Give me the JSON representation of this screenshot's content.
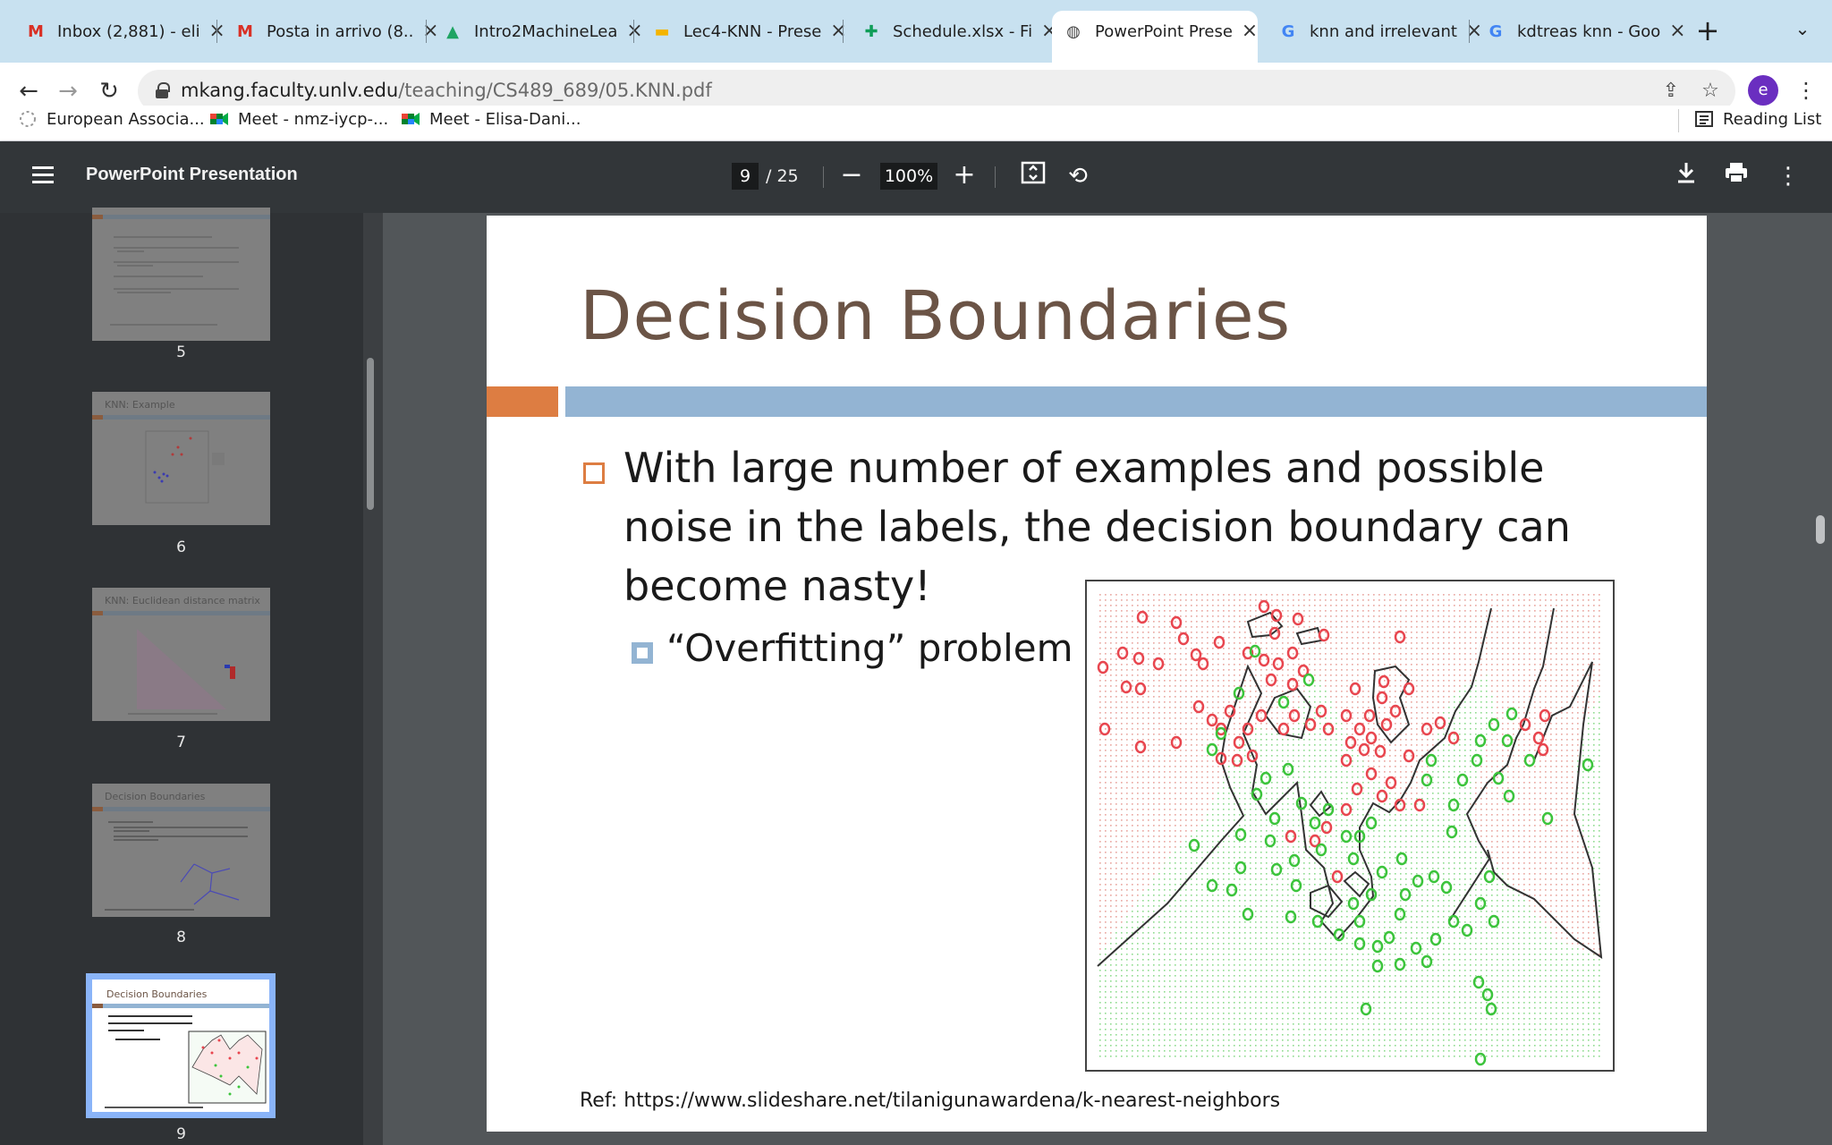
{
  "tabs": [
    {
      "label": "Inbox (2,881) - eli",
      "icon": "gmail-icon",
      "glyph": "M",
      "color": "#d93025"
    },
    {
      "label": "Posta in arrivo (8..",
      "icon": "gmail-icon",
      "glyph": "M",
      "color": "#d93025"
    },
    {
      "label": "Intro2MachineLea",
      "icon": "google-drive-icon",
      "glyph": "▲",
      "color": "#1fa463"
    },
    {
      "label": "Lec4-KNN - Prese",
      "icon": "google-slides-icon",
      "glyph": "▬",
      "color": "#f4b400"
    },
    {
      "label": "Schedule.xlsx - Fi",
      "icon": "google-sheets-icon",
      "glyph": "✚",
      "color": "#0f9d58"
    },
    {
      "label": "PowerPoint Prese",
      "icon": "globe-icon",
      "glyph": "◍",
      "color": "#444444",
      "active": true
    },
    {
      "label": "knn and irrelevant",
      "icon": "google-icon",
      "glyph": "G",
      "color": "#4285f4"
    },
    {
      "label": "kdtreas knn - Goo",
      "icon": "google-icon",
      "glyph": "G",
      "color": "#4285f4"
    }
  ],
  "toolbar": {
    "url_host": "mkang.faculty.unlv.edu",
    "url_path": "/teaching/CS489_689/05.KNN.pdf",
    "avatar_letter": "e"
  },
  "bookmarks": [
    {
      "label": "European Associa...",
      "icon": "loading-icon"
    },
    {
      "label": "Meet - nmz-iycp-...",
      "icon": "google-meet-icon"
    },
    {
      "label": "Meet - Elisa-Dani...",
      "icon": "google-meet-icon"
    }
  ],
  "reading_list": "Reading List",
  "pdf": {
    "title": "PowerPoint Presentation",
    "page_current": "9",
    "page_total": "/ 25",
    "zoom": "100%"
  },
  "thumbnails": [
    {
      "num": "5",
      "title": ""
    },
    {
      "num": "6",
      "title": "KNN: Example"
    },
    {
      "num": "7",
      "title": "KNN: Euclidean distance matrix"
    },
    {
      "num": "8",
      "title": "Decision Boundaries"
    },
    {
      "num": "9",
      "title": "Decision Boundaries",
      "selected": true
    }
  ],
  "slide": {
    "title": "Decision Boundaries",
    "bullet1": "With large number of examples and possible noise in the labels, the decision boundary can become nasty!",
    "bullet2": "“Overfitting” problem",
    "ref": "Ref: https://www.slideshare.net/tilanigunawardena/k-nearest-neighbors",
    "colors": {
      "title": "#6b5446",
      "accent_orange": "#dd7d42",
      "accent_blue": "#93b4d3",
      "class_red": "#e8464f",
      "class_green": "#3cc43c"
    }
  }
}
